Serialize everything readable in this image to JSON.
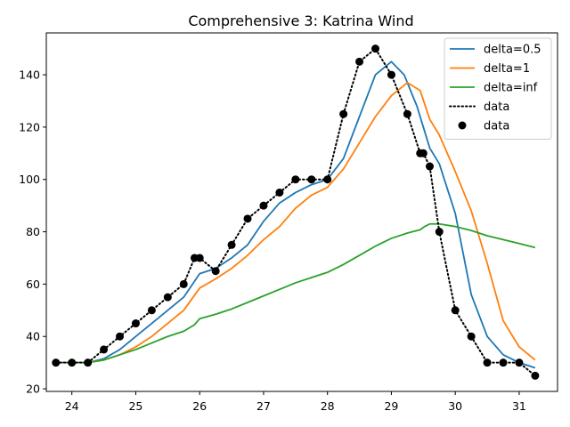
{
  "chart_data": {
    "type": "line",
    "title": "Comprehensive 3: Katrina Wind",
    "xlabel": "",
    "ylabel": "",
    "xlim": [
      23.6,
      31.6
    ],
    "ylim": [
      19,
      156
    ],
    "xticks": [
      24,
      25,
      26,
      27,
      28,
      29,
      30,
      31
    ],
    "yticks": [
      20,
      40,
      60,
      80,
      100,
      120,
      140
    ],
    "grid": false,
    "legend_position": "top-right",
    "series": [
      {
        "name": "delta=0.5",
        "style": "line",
        "color": "#1f77b4",
        "x": [
          23.75,
          24.0,
          24.25,
          24.5,
          24.75,
          25.0,
          25.25,
          25.5,
          25.75,
          26.0,
          26.25,
          26.5,
          26.75,
          27.0,
          27.25,
          27.5,
          27.75,
          28.0,
          28.25,
          28.5,
          28.75,
          29.0,
          29.2,
          29.4,
          29.6,
          29.75,
          30.0,
          30.25,
          30.5,
          30.75,
          31.0,
          31.25
        ],
        "y": [
          30,
          30,
          30,
          31.5,
          35,
          40,
          45,
          50,
          55,
          64,
          66,
          70,
          75,
          84,
          91,
          95,
          98,
          100,
          108,
          124,
          140,
          145,
          140,
          128,
          112,
          106,
          87,
          56,
          40,
          33,
          30,
          28
        ]
      },
      {
        "name": "delta=1",
        "style": "line",
        "color": "#ff7f0e",
        "x": [
          23.75,
          24.0,
          24.25,
          24.5,
          24.75,
          25.0,
          25.25,
          25.5,
          25.75,
          26.0,
          26.25,
          26.5,
          26.75,
          27.0,
          27.25,
          27.5,
          27.75,
          28.0,
          28.25,
          28.5,
          28.75,
          29.0,
          29.25,
          29.45,
          29.6,
          29.75,
          30.0,
          30.25,
          30.5,
          30.75,
          31.0,
          31.25
        ],
        "y": [
          30,
          30,
          30,
          31,
          33,
          36,
          40,
          45,
          50,
          58.5,
          62,
          66,
          71,
          77,
          82,
          89,
          94,
          97,
          104,
          114,
          124,
          132,
          137,
          134,
          123,
          117,
          103,
          88,
          68,
          46,
          36,
          31
        ]
      },
      {
        "name": "delta=inf",
        "style": "line",
        "color": "#2ca02c",
        "x": [
          23.75,
          24.0,
          24.25,
          24.5,
          24.75,
          25.0,
          25.25,
          25.5,
          25.75,
          25.92,
          26.0,
          26.25,
          26.5,
          26.75,
          27.0,
          27.25,
          27.5,
          27.75,
          28.0,
          28.25,
          28.5,
          28.75,
          29.0,
          29.25,
          29.45,
          29.52,
          29.6,
          29.75,
          30.0,
          30.25,
          30.5,
          30.75,
          31.0,
          31.25
        ],
        "y": [
          30,
          30,
          30,
          31,
          33,
          35,
          37.5,
          40,
          42,
          44.5,
          46.8,
          48.5,
          50.5,
          53,
          55.5,
          58,
          60.5,
          62.5,
          64.5,
          67.5,
          71,
          74.5,
          77.5,
          79.5,
          80.8,
          82,
          83,
          83,
          82,
          80.5,
          78.5,
          77,
          75.5,
          74
        ]
      },
      {
        "name": "data",
        "style": "dotted",
        "color": "#000000",
        "x": [
          23.75,
          24.0,
          24.25,
          24.5,
          24.75,
          25.0,
          25.25,
          25.5,
          25.75,
          25.92,
          26.0,
          26.25,
          26.5,
          26.75,
          27.0,
          27.25,
          27.5,
          27.75,
          28.0,
          28.25,
          28.5,
          28.75,
          29.0,
          29.25,
          29.45,
          29.5,
          29.6,
          29.75,
          30.0,
          30.25,
          30.5,
          30.75,
          31.0,
          31.25
        ],
        "y": [
          30,
          30,
          30,
          35,
          40,
          45,
          50,
          55,
          60,
          70,
          70,
          65,
          75,
          85,
          90,
          95,
          100,
          100,
          100,
          125,
          145,
          150,
          140,
          125,
          110,
          110,
          105,
          80,
          50,
          40,
          30,
          30,
          30,
          25
        ]
      },
      {
        "name": "data",
        "style": "markers",
        "color": "#000000",
        "x": [
          23.75,
          24.0,
          24.25,
          24.5,
          24.75,
          25.0,
          25.25,
          25.5,
          25.75,
          25.92,
          26.0,
          26.25,
          26.5,
          26.75,
          27.0,
          27.25,
          27.5,
          27.75,
          28.0,
          28.25,
          28.5,
          28.75,
          29.0,
          29.25,
          29.45,
          29.5,
          29.6,
          29.75,
          30.0,
          30.25,
          30.5,
          30.75,
          31.0,
          31.25
        ],
        "y": [
          30,
          30,
          30,
          35,
          40,
          45,
          50,
          55,
          60,
          70,
          70,
          65,
          75,
          85,
          90,
          95,
          100,
          100,
          100,
          125,
          145,
          150,
          140,
          125,
          110,
          110,
          105,
          80,
          50,
          40,
          30,
          30,
          30,
          25
        ]
      }
    ]
  }
}
